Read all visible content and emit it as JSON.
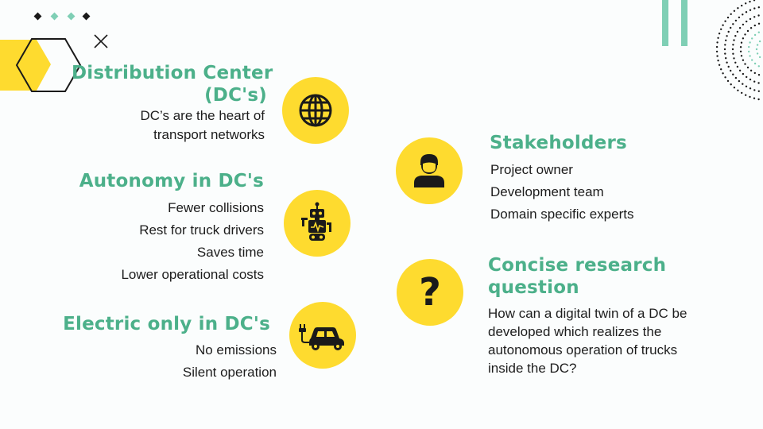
{
  "colors": {
    "accent_green": "#4cb08a",
    "accent_yellow": "#fedb2f",
    "dark": "#1a1a1a",
    "dot_light": "#7fcfb5"
  },
  "icons": [
    "globe-icon",
    "robot-icon",
    "electric-car-icon",
    "person-icon",
    "question-mark-icon",
    "close-icon",
    "hexagon-icon"
  ],
  "left": {
    "dc": {
      "title_line1": "Distribution Center",
      "title_line2": "(DC's)",
      "body_line1": "DC’s are the heart of",
      "body_line2": "transport networks"
    },
    "autonomy": {
      "title": "Autonomy in DC's",
      "items": [
        "Fewer collisions",
        "Rest for truck drivers",
        "Saves time",
        "Lower operational costs"
      ]
    },
    "electric": {
      "title": "Electric only in DC's",
      "items": [
        "No emissions",
        "Silent operation"
      ]
    }
  },
  "right": {
    "stakeholders": {
      "title": "Stakeholders",
      "items": [
        "Project owner",
        "Development team",
        "Domain specific experts"
      ]
    },
    "question": {
      "title_line1": "Concise research",
      "title_line2": "question",
      "glyph": "?",
      "body_lines": [
        "How can a digital twin of a DC be",
        "developed which realizes the",
        "autonomous operation of trucks",
        "inside the DC?"
      ]
    }
  }
}
